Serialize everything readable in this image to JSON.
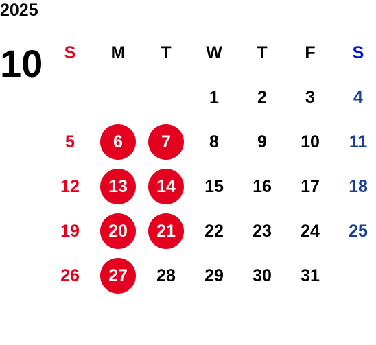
{
  "year": "2025",
  "month": "10",
  "colors": {
    "sunday": "#e4001f",
    "saturday": "#1a3f96",
    "weekday": "#000000",
    "sat_header": "#0014d9",
    "holiday_circle": "#e4001f",
    "holiday_text": "#ffffff"
  },
  "weekdays": [
    "S",
    "M",
    "T",
    "W",
    "T",
    "F",
    "S"
  ],
  "weeks": [
    [
      null,
      null,
      null,
      1,
      2,
      3,
      4
    ],
    [
      5,
      6,
      7,
      8,
      9,
      10,
      11
    ],
    [
      12,
      13,
      14,
      15,
      16,
      17,
      18
    ],
    [
      19,
      20,
      21,
      22,
      23,
      24,
      25
    ],
    [
      26,
      27,
      28,
      29,
      30,
      31,
      null
    ]
  ],
  "circled_days": [
    6,
    7,
    13,
    14,
    20,
    21,
    27
  ]
}
